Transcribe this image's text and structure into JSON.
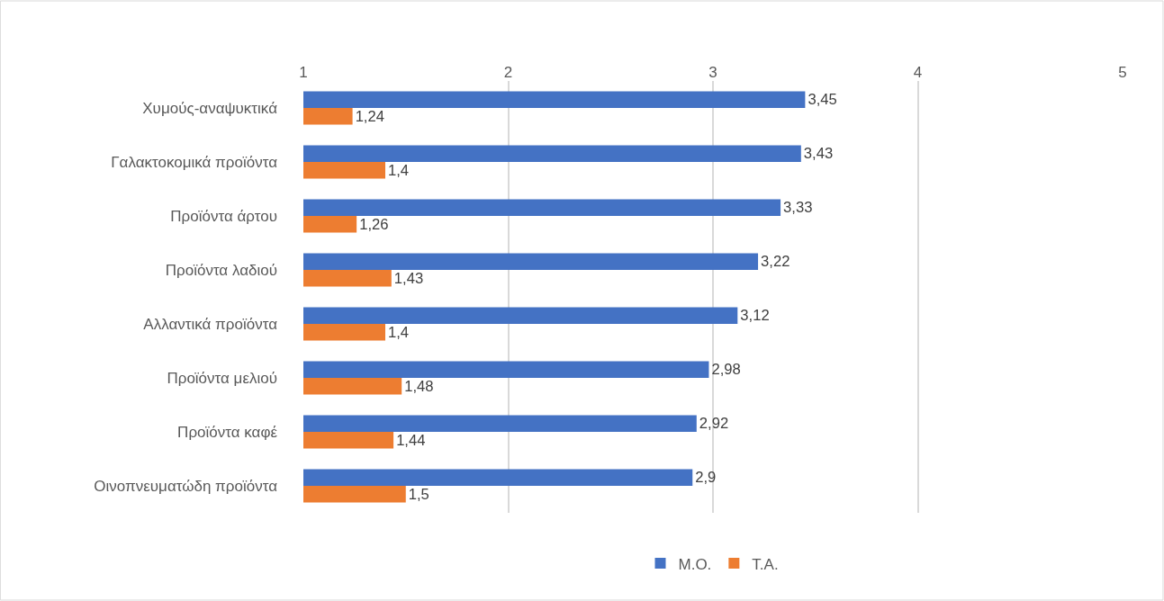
{
  "chart_data": {
    "type": "bar",
    "orientation": "horizontal",
    "categories": [
      "Χυμούς-αναψυκτικά",
      "Γαλακτοκομικά προϊόντα",
      "Προϊόντα άρτου",
      "Προϊόντα λαδιού",
      "Αλλαντικά προϊόντα",
      "Προϊόντα μελιού",
      "Προϊόντα καφέ",
      "Οινοπνευματώδη προϊόντα"
    ],
    "series": [
      {
        "name": "Μ.Ο.",
        "color": "#4472c4",
        "values": [
          3.45,
          3.43,
          3.33,
          3.22,
          3.12,
          2.98,
          2.92,
          2.9
        ],
        "value_labels": [
          "3,45",
          "3,43",
          "3,33",
          "3,22",
          "3,12",
          "2,98",
          "2,92",
          "2,9"
        ]
      },
      {
        "name": "Τ.Α.",
        "color": "#ed7d31",
        "values": [
          1.24,
          1.4,
          1.26,
          1.43,
          1.4,
          1.48,
          1.44,
          1.5
        ],
        "value_labels": [
          "1,24",
          "1,4",
          "1,26",
          "1,43",
          "1,4",
          "1,48",
          "1,44",
          "1,5"
        ]
      }
    ],
    "xlim": [
      1,
      5
    ],
    "xticks": [
      1,
      2,
      3,
      4,
      5
    ],
    "grid": "x",
    "legend": "bottom"
  }
}
